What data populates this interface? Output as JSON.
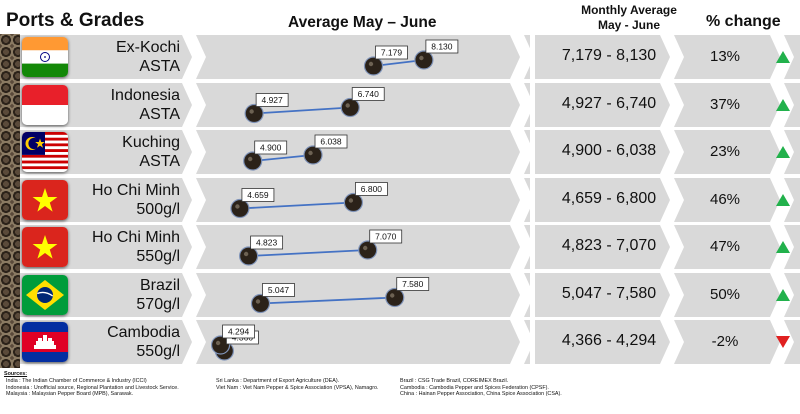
{
  "headers": {
    "ports": "Ports & Grades",
    "average": "Average May – June",
    "monthly_line1": "Monthly Average",
    "monthly_line2": "May - June",
    "pct_change": "% change"
  },
  "rows": [
    {
      "line1": "Ex-Kochi",
      "line2": "ASTA",
      "flag": "india-flag-icon",
      "range": "7,179 - 8,130",
      "pct": "13%",
      "trend": "up",
      "may_label": "7.179",
      "june_label": "8.130"
    },
    {
      "line1": "Indonesia",
      "line2": "ASTA",
      "flag": "indonesia-flag-icon",
      "range": "4,927 - 6,740",
      "pct": "37%",
      "trend": "up",
      "may_label": "4.927",
      "june_label": "6.740"
    },
    {
      "line1": "Kuching",
      "line2": "ASTA",
      "flag": "malaysia-flag-icon",
      "range": "4,900 - 6,038",
      "pct": "23%",
      "trend": "up",
      "may_label": "4.900",
      "june_label": "6.038"
    },
    {
      "line1": "Ho Chi Minh",
      "line2": "500g/l",
      "flag": "vietnam-flag-icon",
      "range": "4,659 - 6,800",
      "pct": "46%",
      "trend": "up",
      "may_label": "4.659",
      "june_label": "6.800"
    },
    {
      "line1": "Ho Chi Minh",
      "line2": "550g/l",
      "flag": "vietnam-flag-icon",
      "range": "4,823 - 7,070",
      "pct": "47%",
      "trend": "up",
      "may_label": "4.823",
      "june_label": "7.070"
    },
    {
      "line1": "Brazil",
      "line2": "570g/l",
      "flag": "brazil-flag-icon",
      "range": "5,047 - 7,580",
      "pct": "50%",
      "trend": "up",
      "may_label": "5.047",
      "june_label": "7.580"
    },
    {
      "line1": "Cambodia",
      "line2": "550g/l",
      "flag": "cambodia-flag-icon",
      "range": "4,366 - 4,294",
      "pct": "-2%",
      "trend": "down",
      "may_label": "4.366",
      "june_label": "4.294"
    }
  ],
  "chart_data": {
    "type": "scatter",
    "title": "Average May – June",
    "categories": [
      "Ex-Kochi ASTA",
      "Indonesia ASTA",
      "Kuching ASTA",
      "Ho Chi Minh 500g/l",
      "Ho Chi Minh 550g/l",
      "Brazil 570g/l",
      "Cambodia 550g/l"
    ],
    "series": [
      {
        "values": [
          7179,
          4927,
          4900,
          4659,
          4823,
          5047,
          4366
        ]
      },
      {
        "values": [
          8130,
          6740,
          6038,
          6800,
          7070,
          7580,
          4294
        ]
      }
    ]
  },
  "colors": {
    "row_bg": "#d9d9d9",
    "connector": "#4472c4",
    "up_arrow": "#22b14c",
    "down_arrow": "#e02020",
    "pepper_dot": "#2b2219"
  },
  "sources": {
    "title": "Sources:",
    "col1": [
      "India : The Indian Chamber of Commerce & Industry (ICCI)",
      "Indonesia : Unofficial source, Regional Plantation and Livestock Service.",
      "Malaysia : Malaysian Pepper Board (MPB), Sarawak."
    ],
    "col2": [
      "Sri Lanka : Department of Export Agriculture (DEA).",
      "Viet Nam : Viet Nam Pepper & Spice Association (VPSA), Namagro."
    ],
    "col3": [
      "Brazil : CSG Trade Brazil, COREIMEX Brazil.",
      "Cambodia : Cambodia Pepper and Spices Federation (CPSF).",
      "China : Hainan Pepper Association, China Spice Association (CSA)."
    ]
  }
}
